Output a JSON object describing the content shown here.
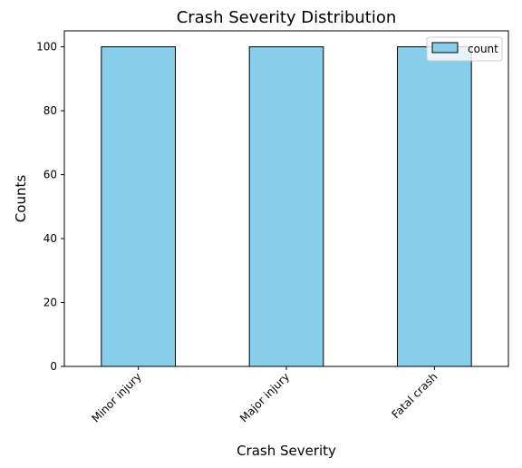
{
  "chart_data": {
    "type": "bar",
    "title": "Crash Severity Distribution",
    "xlabel": "Crash Severity",
    "ylabel": "Counts",
    "categories": [
      "Minor injury",
      "Major injury",
      "Fatal crash"
    ],
    "series": [
      {
        "name": "count",
        "values": [
          100,
          100,
          100
        ]
      }
    ],
    "ylim": [
      0,
      105
    ],
    "yticks": [
      0,
      20,
      40,
      60,
      80,
      100
    ],
    "x_tick_rotation_deg": 45,
    "grid": false,
    "legend_position": "top-right",
    "bar_color": "#87ceeb",
    "bar_edge_color": "#000000"
  }
}
